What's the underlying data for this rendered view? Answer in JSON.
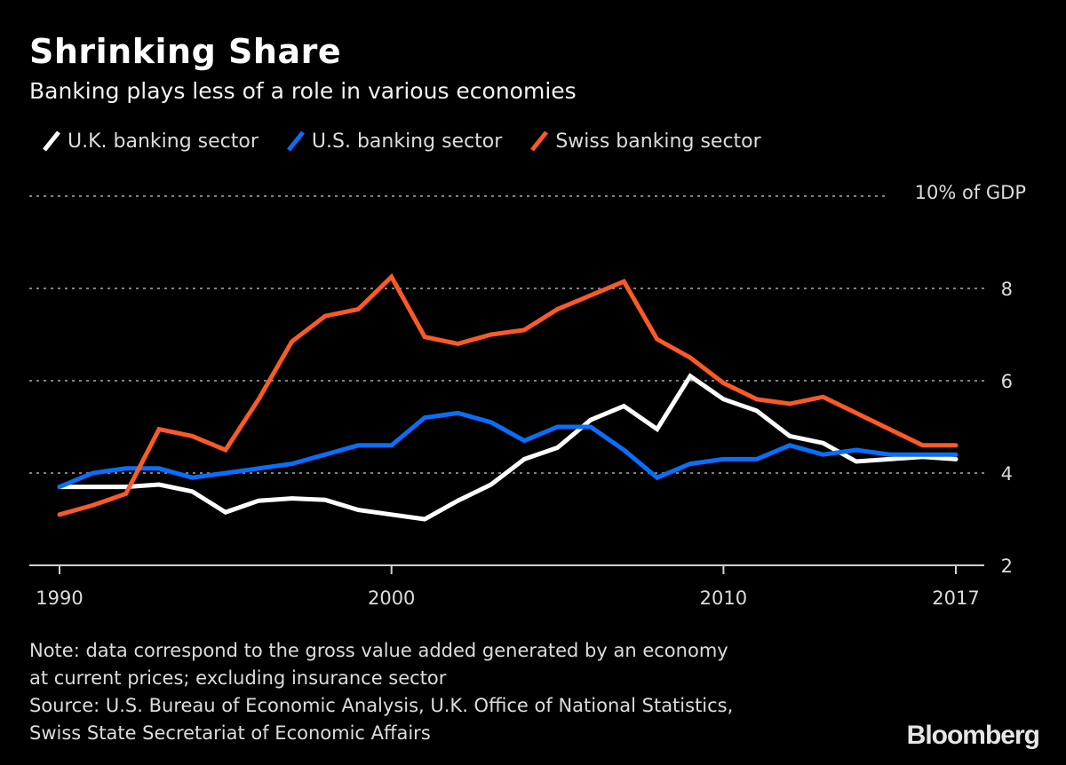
{
  "chart_data": {
    "type": "line",
    "title": "Shrinking Share",
    "subtitle": "Banking plays less of a role in various economies",
    "xlabel": "",
    "ylabel": "% of GDP",
    "y_unit_label": "10% of GDP",
    "x": [
      1990,
      1991,
      1992,
      1993,
      1994,
      1995,
      1996,
      1997,
      1998,
      1999,
      2000,
      2001,
      2002,
      2003,
      2004,
      2005,
      2006,
      2007,
      2008,
      2009,
      2010,
      2011,
      2012,
      2013,
      2014,
      2015,
      2016,
      2017
    ],
    "xlim": [
      1990,
      2017
    ],
    "ylim": [
      2,
      10
    ],
    "x_ticks": [
      1990,
      2000,
      2010,
      2017
    ],
    "x_tick_labels": [
      "1990",
      "2000",
      "2010",
      "2017"
    ],
    "y_ticks": [
      2,
      4,
      6,
      8,
      10
    ],
    "y_tick_labels": [
      "2",
      "4",
      "6",
      "8",
      "10% of GDP"
    ],
    "grid": true,
    "legend_position": "top-left",
    "series": [
      {
        "name": "U.K. banking sector",
        "color": "#ffffff",
        "values": [
          3.7,
          3.7,
          3.7,
          3.75,
          3.6,
          3.15,
          3.4,
          3.45,
          3.42,
          3.2,
          3.1,
          3.0,
          3.4,
          3.75,
          4.3,
          4.55,
          5.15,
          5.45,
          4.95,
          6.1,
          5.6,
          5.35,
          4.8,
          4.65,
          4.25,
          4.3,
          4.35,
          4.3
        ]
      },
      {
        "name": "U.S. banking sector",
        "color": "#0a6efa",
        "values": [
          3.7,
          4.0,
          4.1,
          4.1,
          3.9,
          4.0,
          4.1,
          4.2,
          4.4,
          4.6,
          4.6,
          5.2,
          5.3,
          5.1,
          4.7,
          5.0,
          5.0,
          4.5,
          3.9,
          4.2,
          4.3,
          4.3,
          4.6,
          4.4,
          4.5,
          4.4,
          4.4,
          4.4
        ]
      },
      {
        "name": "Swiss banking sector",
        "color": "#fa5a28",
        "values": [
          3.1,
          3.3,
          3.55,
          4.95,
          4.8,
          4.5,
          5.6,
          6.85,
          7.4,
          7.55,
          8.25,
          6.95,
          6.8,
          7.0,
          7.1,
          7.55,
          7.85,
          8.15,
          6.9,
          6.5,
          5.95,
          5.6,
          5.5,
          5.65,
          5.3,
          4.95,
          4.6,
          4.6
        ]
      }
    ]
  },
  "footer": {
    "note_line1": "Note: data correspond to the gross value added generated by an economy",
    "note_line2": "at current prices; excluding insurance sector",
    "source_line1": "Source: U.S. Bureau of Economic Analysis, U.K. Office of National Statistics,",
    "source_line2": "Swiss State Secretariat of Economic Affairs",
    "brand": "Bloomberg"
  }
}
